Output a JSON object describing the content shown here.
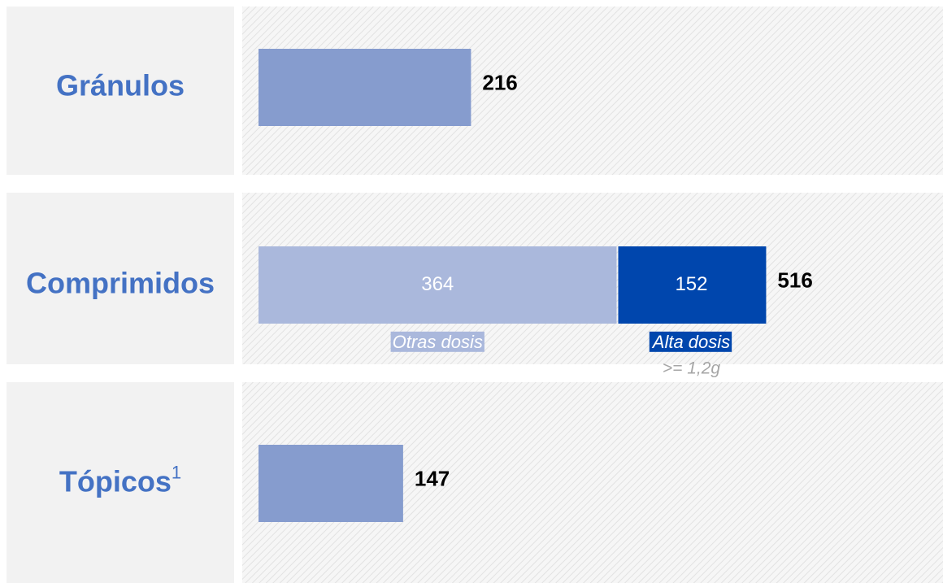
{
  "chart_data": {
    "type": "bar",
    "orientation": "horizontal",
    "stacked": true,
    "categories": [
      "Gránulos",
      "Comprimidos",
      "Tópicos"
    ],
    "superscripts": [
      null,
      null,
      "1"
    ],
    "series": [
      {
        "name": "Otras dosis",
        "colors": [
          "#869cce",
          "#aab8dc",
          "#869cce"
        ],
        "values": [
          216,
          364,
          147
        ]
      },
      {
        "name": "Alta dosis",
        "note": ">= 1,2g",
        "color": "#0046ad",
        "values": [
          null,
          152,
          null
        ]
      }
    ],
    "totals": [
      216,
      516,
      147
    ],
    "xlim": [
      0,
      690
    ],
    "category_color": "#4472c4"
  }
}
